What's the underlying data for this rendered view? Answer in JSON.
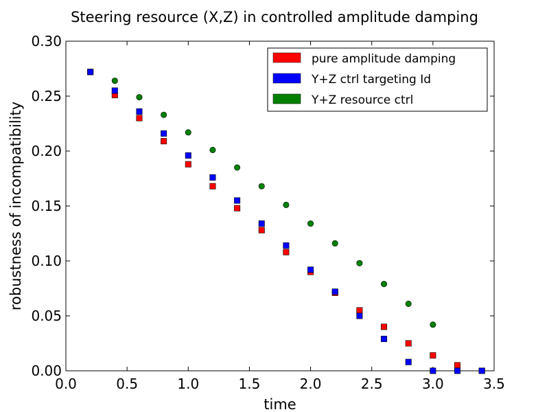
{
  "chart_data": {
    "type": "scatter",
    "title": "Steering resource (X,Z) in controlled amplitude damping",
    "xlabel": "time",
    "ylabel": "robustness of incompatibility",
    "xlim": [
      0.0,
      3.5
    ],
    "ylim": [
      0.0,
      0.3
    ],
    "xticks": [
      "0.0",
      "0.5",
      "1.0",
      "1.5",
      "2.0",
      "2.5",
      "3.0",
      "3.5"
    ],
    "yticks": [
      "0.00",
      "0.05",
      "0.10",
      "0.15",
      "0.20",
      "0.25",
      "0.30"
    ],
    "grid": false,
    "legend_position": "top-right",
    "series": [
      {
        "name": "pure amplitude damping",
        "color": "#ff0000",
        "marker": "square",
        "x": [
          0.2,
          0.4,
          0.6,
          0.8,
          1.0,
          1.2,
          1.4,
          1.6,
          1.8,
          2.0,
          2.2,
          2.4,
          2.6,
          2.8,
          3.0,
          3.2,
          3.4
        ],
        "y": [
          0.272,
          0.251,
          0.23,
          0.209,
          0.188,
          0.168,
          0.148,
          0.128,
          0.108,
          0.09,
          0.071,
          0.055,
          0.04,
          0.025,
          0.014,
          0.005,
          0.0
        ]
      },
      {
        "name": "Y+Z ctrl targeting Id",
        "color": "#0000ff",
        "marker": "square",
        "x": [
          0.2,
          0.4,
          0.6,
          0.8,
          1.0,
          1.2,
          1.4,
          1.6,
          1.8,
          2.0,
          2.2,
          2.4,
          2.6,
          2.8,
          3.0,
          3.2,
          3.4
        ],
        "y": [
          0.272,
          0.255,
          0.236,
          0.216,
          0.196,
          0.176,
          0.155,
          0.134,
          0.114,
          0.092,
          0.072,
          0.05,
          0.029,
          0.008,
          0.0,
          0.0,
          0.0
        ]
      },
      {
        "name": "Y+Z resource ctrl",
        "color": "#008000",
        "marker": "circle",
        "x": [
          0.4,
          0.6,
          0.8,
          1.0,
          1.2,
          1.4,
          1.6,
          1.8,
          2.0,
          2.2,
          2.4,
          2.6,
          2.8,
          3.0
        ],
        "y": [
          0.264,
          0.249,
          0.233,
          0.217,
          0.201,
          0.185,
          0.168,
          0.151,
          0.134,
          0.116,
          0.098,
          0.079,
          0.061,
          0.042
        ]
      }
    ]
  }
}
